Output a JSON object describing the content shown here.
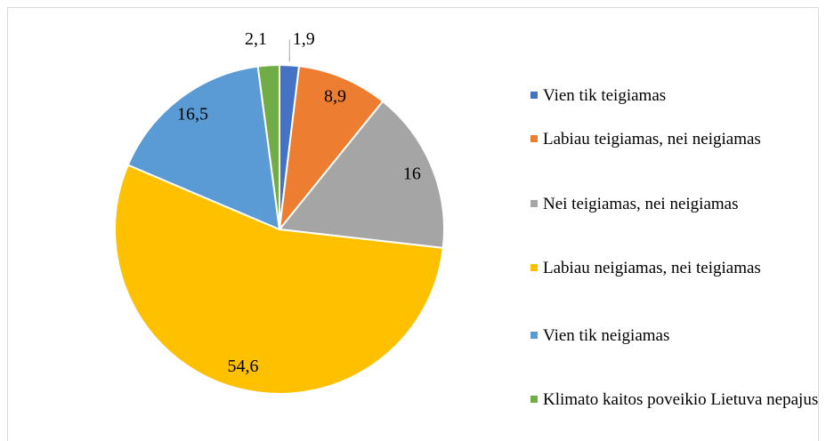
{
  "chart_data": {
    "type": "pie",
    "categories": [
      "Vien tik teigiamas",
      "Labiau teigiamas, nei neigiamas",
      "Nei teigiamas, nei neigiamas",
      "Labiau neigiamas, nei teigiamas",
      "Vien tik neigiamas",
      "Klimato kaitos poveikio Lietuva nepajus"
    ],
    "values": [
      1.9,
      8.9,
      16,
      54.6,
      16.5,
      2.1
    ],
    "value_labels": [
      "1,9",
      "8,9",
      "16",
      "54,6",
      "16,5",
      "2,1"
    ],
    "colors": [
      "#4472c4",
      "#ed7d31",
      "#a5a5a5",
      "#ffc000",
      "#5b9bd5",
      "#70ad47"
    ],
    "legend": "right"
  }
}
